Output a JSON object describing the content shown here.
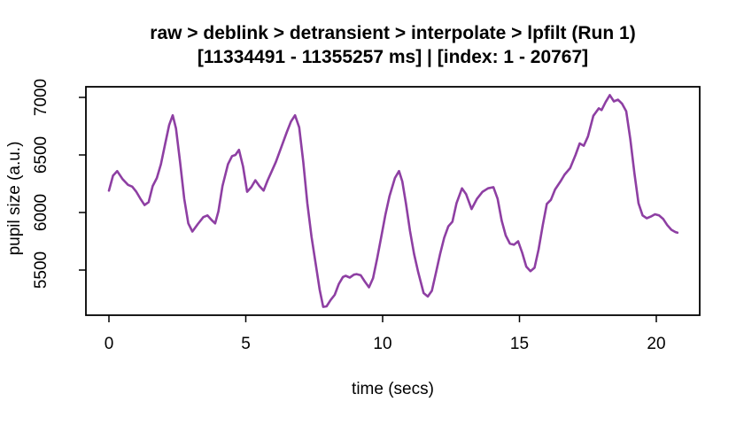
{
  "chart_data": {
    "type": "line",
    "title": "raw > deblink > detransient > interpolate > lpfilt (Run 1)",
    "subtitle": "[11334491 - 11355257 ms] | [index: 1 - 20767]",
    "xlabel": "time (secs)",
    "ylabel": "pupil size (a.u.)",
    "x_ticks": [
      0,
      5,
      10,
      15,
      20
    ],
    "y_ticks": [
      5500,
      6000,
      6500,
      7000
    ],
    "xlim": [
      -0.85,
      21.6
    ],
    "ylim": [
      5105,
      7095
    ],
    "grid": false,
    "legend": "none",
    "background": "#FFFFFF",
    "axis_color": "#000000",
    "line_color": "#8E3FA3",
    "series": [
      {
        "name": "pupil size",
        "x": [
          0,
          0.15,
          0.3,
          0.5,
          0.7,
          0.85,
          1.0,
          1.15,
          1.3,
          1.45,
          1.6,
          1.75,
          1.9,
          2.05,
          2.2,
          2.33,
          2.45,
          2.6,
          2.75,
          2.9,
          3.05,
          3.25,
          3.45,
          3.6,
          3.75,
          3.88,
          4.0,
          4.15,
          4.35,
          4.5,
          4.62,
          4.75,
          4.9,
          5.05,
          5.2,
          5.35,
          5.5,
          5.65,
          5.8,
          5.95,
          6.1,
          6.3,
          6.5,
          6.65,
          6.8,
          6.95,
          7.1,
          7.25,
          7.4,
          7.55,
          7.7,
          7.83,
          7.95,
          8.1,
          8.25,
          8.4,
          8.55,
          8.65,
          8.8,
          8.95,
          9.05,
          9.2,
          9.35,
          9.5,
          9.65,
          9.8,
          9.95,
          10.1,
          10.25,
          10.45,
          10.6,
          10.72,
          10.85,
          11.0,
          11.15,
          11.3,
          11.5,
          11.65,
          11.8,
          11.95,
          12.1,
          12.25,
          12.4,
          12.55,
          12.7,
          12.9,
          13.05,
          13.25,
          13.45,
          13.65,
          13.85,
          14.05,
          14.2,
          14.35,
          14.5,
          14.65,
          14.8,
          14.95,
          15.1,
          15.25,
          15.4,
          15.55,
          15.7,
          15.85,
          16.0,
          16.15,
          16.3,
          16.5,
          16.65,
          16.85,
          17.05,
          17.2,
          17.35,
          17.5,
          17.7,
          17.9,
          18.0,
          18.15,
          18.3,
          18.45,
          18.6,
          18.75,
          18.9,
          19.05,
          19.2,
          19.35,
          19.5,
          19.65,
          19.8,
          19.95,
          20.1,
          20.25,
          20.4,
          20.55,
          20.7,
          20.77
        ],
        "y": [
          6190,
          6320,
          6360,
          6290,
          6240,
          6225,
          6180,
          6120,
          6065,
          6090,
          6230,
          6300,
          6420,
          6590,
          6760,
          6845,
          6730,
          6440,
          6120,
          5905,
          5835,
          5900,
          5960,
          5975,
          5935,
          5905,
          6010,
          6230,
          6420,
          6490,
          6500,
          6545,
          6400,
          6180,
          6220,
          6280,
          6230,
          6190,
          6280,
          6360,
          6440,
          6570,
          6700,
          6790,
          6845,
          6740,
          6440,
          6080,
          5790,
          5560,
          5330,
          5180,
          5185,
          5240,
          5285,
          5380,
          5440,
          5450,
          5435,
          5460,
          5465,
          5455,
          5400,
          5350,
          5430,
          5600,
          5790,
          5980,
          6140,
          6300,
          6360,
          6270,
          6080,
          5840,
          5640,
          5480,
          5300,
          5270,
          5320,
          5480,
          5640,
          5780,
          5880,
          5920,
          6080,
          6210,
          6160,
          6030,
          6120,
          6180,
          6210,
          6220,
          6120,
          5930,
          5800,
          5730,
          5720,
          5750,
          5650,
          5530,
          5490,
          5520,
          5680,
          5890,
          6075,
          6110,
          6200,
          6270,
          6330,
          6385,
          6500,
          6600,
          6580,
          6660,
          6840,
          6905,
          6890,
          6960,
          7020,
          6965,
          6980,
          6945,
          6880,
          6640,
          6340,
          6080,
          5975,
          5950,
          5965,
          5985,
          5975,
          5945,
          5890,
          5850,
          5830,
          5825
        ]
      }
    ]
  }
}
